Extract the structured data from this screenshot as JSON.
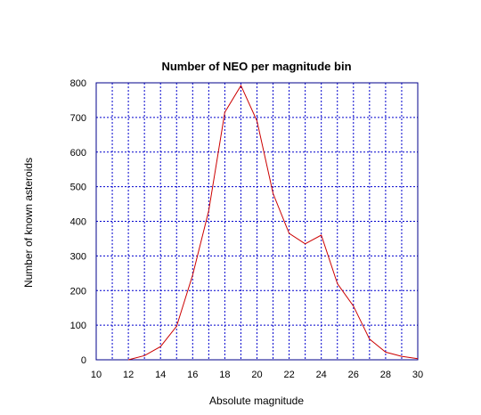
{
  "chart_data": {
    "type": "line",
    "title": "Number of NEO per magnitude bin",
    "xlabel": "Absolute magnitude",
    "ylabel": "Number of known asteroids",
    "xlim": [
      10,
      30
    ],
    "ylim": [
      0,
      800
    ],
    "x_ticks": [
      "10",
      "12",
      "14",
      "16",
      "18",
      "20",
      "22",
      "24",
      "26",
      "28",
      "30"
    ],
    "y_ticks": [
      "0",
      "100",
      "200",
      "300",
      "400",
      "500",
      "600",
      "700",
      "800"
    ],
    "grid": true,
    "legend": "none",
    "series": [
      {
        "color": "#cc0000",
        "x": [
          12,
          13,
          14,
          15,
          16,
          17,
          18,
          19,
          20,
          21,
          22,
          23,
          24,
          25,
          26,
          27,
          28,
          29,
          30
        ],
        "y": [
          0,
          12,
          38,
          97,
          245,
          430,
          715,
          792,
          690,
          480,
          365,
          335,
          360,
          220,
          155,
          60,
          22,
          10,
          3
        ]
      }
    ],
    "axis_color": "#00008b",
    "grid_color": "#0000cd"
  }
}
